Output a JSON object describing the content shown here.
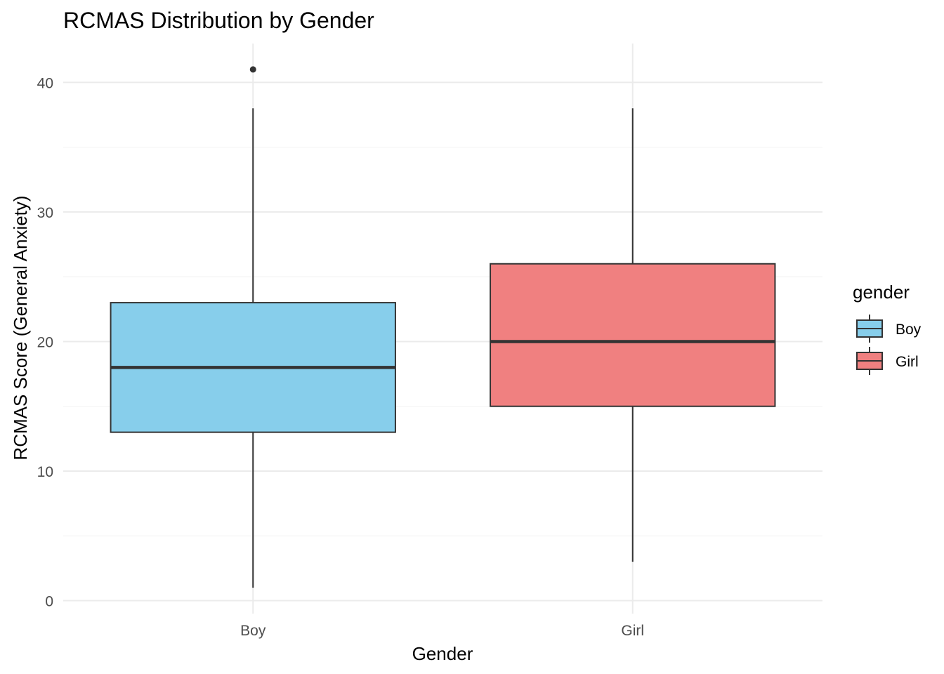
{
  "chart_data": {
    "type": "box",
    "title": "RCMAS Distribution by Gender",
    "xlabel": "Gender",
    "ylabel": "RCMAS Score (General Anxiety)",
    "ylim": [
      -1,
      43
    ],
    "yticks": [
      0,
      10,
      20,
      30,
      40
    ],
    "grid": true,
    "legend": {
      "title": "gender",
      "position": "right"
    },
    "categories": [
      "Boy",
      "Girl"
    ],
    "series": [
      {
        "name": "Boy",
        "color": "#87CEEB",
        "min": 1,
        "q1": 13,
        "median": 18,
        "q3": 23,
        "max": 38,
        "outliers": [
          41
        ]
      },
      {
        "name": "Girl",
        "color": "#F08080",
        "min": 3,
        "q1": 15,
        "median": 20,
        "q3": 26,
        "max": 38,
        "outliers": []
      }
    ]
  }
}
